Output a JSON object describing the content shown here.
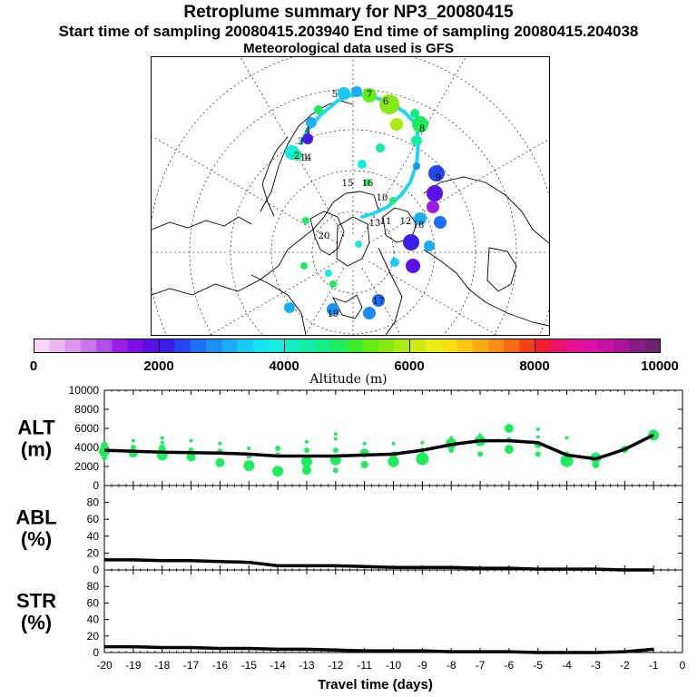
{
  "titles": {
    "line1": "Retroplume summary for NP3_20080415",
    "line2": "Start time of sampling 20080415.203940     End time of sampling 20080415.204038",
    "line3": "Meteorological data used is GFS"
  },
  "map": {
    "trajectory_color": "#22d4ee",
    "day_labels": [
      "1",
      "2",
      "3",
      "4",
      "5",
      "6",
      "7",
      "8",
      "9",
      "10",
      "11",
      "12",
      "13",
      "14",
      "15",
      "16",
      "17",
      "18",
      "19",
      "20"
    ]
  },
  "colorbar": {
    "colors": [
      "#f6d6f6",
      "#eab8ef",
      "#dc96ec",
      "#c877ea",
      "#b24ee8",
      "#9a1ee6",
      "#7a10e6",
      "#5a10e6",
      "#3c1ee6",
      "#2448f0",
      "#1c6ef4",
      "#1a90f6",
      "#1aaef6",
      "#1acaf4",
      "#18e2ee",
      "#16ece0",
      "#16ecc4",
      "#16eca6",
      "#16ec84",
      "#1cec5e",
      "#3cec2c",
      "#62ec12",
      "#8ae812",
      "#acea14",
      "#ccec14",
      "#eaee14",
      "#f6e014",
      "#f8c814",
      "#f6aa14",
      "#f68c14",
      "#f66a14",
      "#f44014",
      "#f01e30",
      "#ec1272",
      "#e81296",
      "#dc12a6",
      "#c812a4",
      "#aa1498",
      "#861a86",
      "#6e2270"
    ],
    "tick_labels": [
      "0",
      "2000",
      "4000",
      "6000",
      "8000",
      "10000"
    ],
    "tick_values": [
      0,
      2000,
      4000,
      6000,
      8000,
      10000
    ],
    "axis_label": "Altitude (m)"
  },
  "chart_data": [
    {
      "type": "line",
      "label": "ALT",
      "unit": "(m)",
      "x": [
        -20,
        -19,
        -18,
        -17,
        -16,
        -15,
        -14,
        -13,
        -12,
        -11,
        -10,
        -9,
        -8,
        -7,
        -6,
        -5,
        -4,
        -3,
        -2,
        -1
      ],
      "values": [
        3700,
        3600,
        3500,
        3450,
        3400,
        3300,
        3100,
        3100,
        3100,
        3200,
        3300,
        3700,
        4300,
        4700,
        4700,
        4500,
        3200,
        2800,
        3800,
        5300
      ],
      "ylim": [
        0,
        10000
      ],
      "yticks": [
        0,
        2000,
        4000,
        6000,
        8000,
        10000
      ],
      "scatter_color": "#1cec5e",
      "particle_points": [
        {
          "x": -20,
          "y": 3600,
          "r": 6
        },
        {
          "x": -20,
          "y": 4200,
          "r": 4
        },
        {
          "x": -20,
          "y": 2900,
          "r": 3
        },
        {
          "x": -19,
          "y": 3400,
          "r": 5
        },
        {
          "x": -19,
          "y": 4000,
          "r": 3
        },
        {
          "x": -19,
          "y": 4700,
          "r": 2
        },
        {
          "x": -18,
          "y": 3200,
          "r": 6
        },
        {
          "x": -18,
          "y": 3900,
          "r": 4
        },
        {
          "x": -18,
          "y": 5000,
          "r": 2
        },
        {
          "x": -18,
          "y": 4500,
          "r": 2
        },
        {
          "x": -17,
          "y": 3000,
          "r": 5
        },
        {
          "x": -17,
          "y": 3700,
          "r": 3
        },
        {
          "x": -17,
          "y": 4700,
          "r": 2
        },
        {
          "x": -16,
          "y": 2400,
          "r": 5
        },
        {
          "x": -16,
          "y": 3600,
          "r": 3
        },
        {
          "x": -16,
          "y": 4400,
          "r": 2
        },
        {
          "x": -15,
          "y": 2100,
          "r": 6
        },
        {
          "x": -15,
          "y": 3100,
          "r": 3
        },
        {
          "x": -15,
          "y": 3900,
          "r": 2
        },
        {
          "x": -14,
          "y": 1500,
          "r": 6
        },
        {
          "x": -14,
          "y": 3200,
          "r": 3
        },
        {
          "x": -14,
          "y": 3900,
          "r": 3
        },
        {
          "x": -13,
          "y": 1600,
          "r": 5
        },
        {
          "x": -13,
          "y": 2500,
          "r": 6
        },
        {
          "x": -13,
          "y": 3700,
          "r": 3
        },
        {
          "x": -13,
          "y": 4600,
          "r": 2
        },
        {
          "x": -12,
          "y": 1600,
          "r": 3
        },
        {
          "x": -12,
          "y": 2700,
          "r": 6
        },
        {
          "x": -12,
          "y": 3700,
          "r": 3
        },
        {
          "x": -12,
          "y": 4900,
          "r": 2
        },
        {
          "x": -12,
          "y": 5400,
          "r": 2
        },
        {
          "x": -11,
          "y": 2200,
          "r": 4
        },
        {
          "x": -11,
          "y": 3400,
          "r": 5
        },
        {
          "x": -11,
          "y": 4400,
          "r": 2
        },
        {
          "x": -10,
          "y": 2500,
          "r": 6
        },
        {
          "x": -10,
          "y": 3200,
          "r": 4
        },
        {
          "x": -10,
          "y": 4400,
          "r": 2
        },
        {
          "x": -9,
          "y": 2800,
          "r": 7
        },
        {
          "x": -9,
          "y": 3700,
          "r": 3
        },
        {
          "x": -9,
          "y": 4500,
          "r": 2
        },
        {
          "x": -8,
          "y": 4400,
          "r": 6
        },
        {
          "x": -8,
          "y": 3700,
          "r": 3
        },
        {
          "x": -8,
          "y": 5000,
          "r": 2
        },
        {
          "x": -7,
          "y": 4700,
          "r": 6
        },
        {
          "x": -7,
          "y": 3300,
          "r": 3
        },
        {
          "x": -7,
          "y": 5300,
          "r": 2
        },
        {
          "x": -6,
          "y": 6000,
          "r": 5
        },
        {
          "x": -6,
          "y": 3800,
          "r": 5
        },
        {
          "x": -6,
          "y": 4800,
          "r": 3
        },
        {
          "x": -5,
          "y": 4300,
          "r": 4
        },
        {
          "x": -5,
          "y": 3300,
          "r": 3
        },
        {
          "x": -5,
          "y": 5100,
          "r": 2
        },
        {
          "x": -5,
          "y": 5900,
          "r": 2
        },
        {
          "x": -4,
          "y": 2600,
          "r": 7
        },
        {
          "x": -4,
          "y": 3300,
          "r": 3
        },
        {
          "x": -4,
          "y": 5000,
          "r": 2
        },
        {
          "x": -3,
          "y": 2900,
          "r": 6
        },
        {
          "x": -3,
          "y": 2200,
          "r": 4
        },
        {
          "x": -3,
          "y": 3300,
          "r": 2
        },
        {
          "x": -2,
          "y": 3800,
          "r": 4
        },
        {
          "x": -1,
          "y": 5300,
          "r": 6
        }
      ]
    },
    {
      "type": "line",
      "label": "ABL",
      "unit": "(%)",
      "x": [
        -20,
        -19,
        -18,
        -17,
        -16,
        -15,
        -14,
        -13,
        -12,
        -11,
        -10,
        -9,
        -8,
        -7,
        -6,
        -5,
        -4,
        -3,
        -2,
        -1
      ],
      "values": [
        12,
        12,
        11,
        11,
        10,
        9,
        5,
        5,
        5,
        4,
        3,
        3,
        3,
        2,
        2,
        1,
        1,
        1,
        0,
        0
      ],
      "ylim": [
        0,
        100
      ],
      "yticks": [
        0,
        20,
        40,
        60,
        80
      ]
    },
    {
      "type": "line",
      "label": "STR",
      "unit": "(%)",
      "x": [
        -20,
        -19,
        -18,
        -17,
        -16,
        -15,
        -14,
        -13,
        -12,
        -11,
        -10,
        -9,
        -8,
        -7,
        -6,
        -5,
        -4,
        -3,
        -2,
        -1
      ],
      "values": [
        7,
        7,
        6,
        6,
        5,
        5,
        4,
        4,
        3,
        2,
        2,
        2,
        1,
        1,
        1,
        0,
        0,
        0,
        1,
        4
      ],
      "ylim": [
        0,
        100
      ],
      "yticks": [
        0,
        20,
        40,
        60,
        80
      ],
      "xlabel": "Travel time (days)",
      "xtick_labels": [
        "-20",
        "-19",
        "-18",
        "-17",
        "-16",
        "-15",
        "-14",
        "-13",
        "-12",
        "-11",
        "-10",
        "-9",
        "-8",
        "-7",
        "-6",
        "-5",
        "-4",
        "-3",
        "-2",
        "-1",
        "0"
      ]
    }
  ]
}
